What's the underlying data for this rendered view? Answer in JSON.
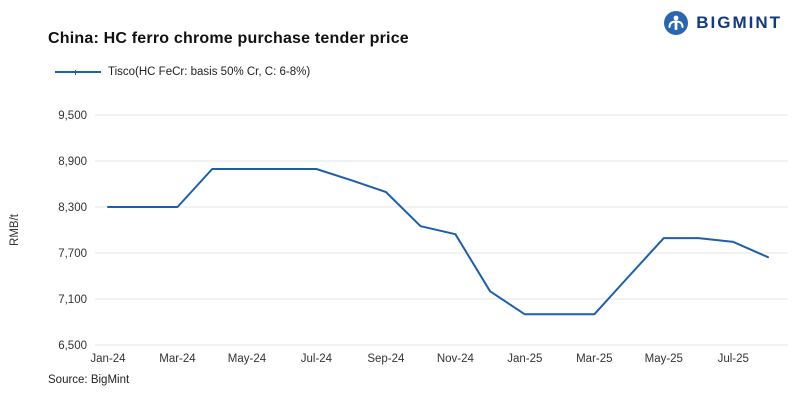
{
  "header": {
    "title": "China: HC ferro chrome purchase tender price",
    "brand": "BIGMINT"
  },
  "legend": {
    "label": "Tisco(HC FeCr: basis 50% Cr, C: 6-8%)"
  },
  "source": "Source: BigMint",
  "colors": {
    "line": "#1f5fa8",
    "brand": "#123a7d",
    "logo_circle": "#2a67ae",
    "grid": "#e4e4e4",
    "axis_text": "#333333"
  },
  "chart_data": {
    "type": "line",
    "title": "China: HC ferro chrome purchase tender price",
    "ylabel": "RMB/t",
    "ylim": [
      6500,
      9500
    ],
    "yticks": [
      6500,
      7100,
      7700,
      8300,
      8900,
      9500
    ],
    "x": [
      "Jan-24",
      "Feb-24",
      "Mar-24",
      "Apr-24",
      "May-24",
      "Jun-24",
      "Jul-24",
      "Aug-24",
      "Sep-24",
      "Oct-24",
      "Nov-24",
      "Dec-24",
      "Jan-25",
      "Feb-25",
      "Mar-25",
      "Apr-25",
      "May-25",
      "Jun-25",
      "Jul-25",
      "Aug-25"
    ],
    "xtick_labels": [
      "Jan-24",
      "Mar-24",
      "May-24",
      "Jul-24",
      "Sep-24",
      "Nov-24",
      "Jan-25",
      "Mar-25",
      "May-25",
      "Jul-25"
    ],
    "xtick_every": 2,
    "series": [
      {
        "name": "Tisco(HC FeCr: basis 50% Cr, C: 6-8%)",
        "values": [
          8300,
          8300,
          8300,
          8795,
          8795,
          8795,
          8795,
          8650,
          8495,
          8050,
          7945,
          7200,
          6900,
          6900,
          6900,
          7400,
          7895,
          7895,
          7845,
          7645
        ]
      }
    ],
    "grid": true,
    "legend_position": "top-left"
  }
}
